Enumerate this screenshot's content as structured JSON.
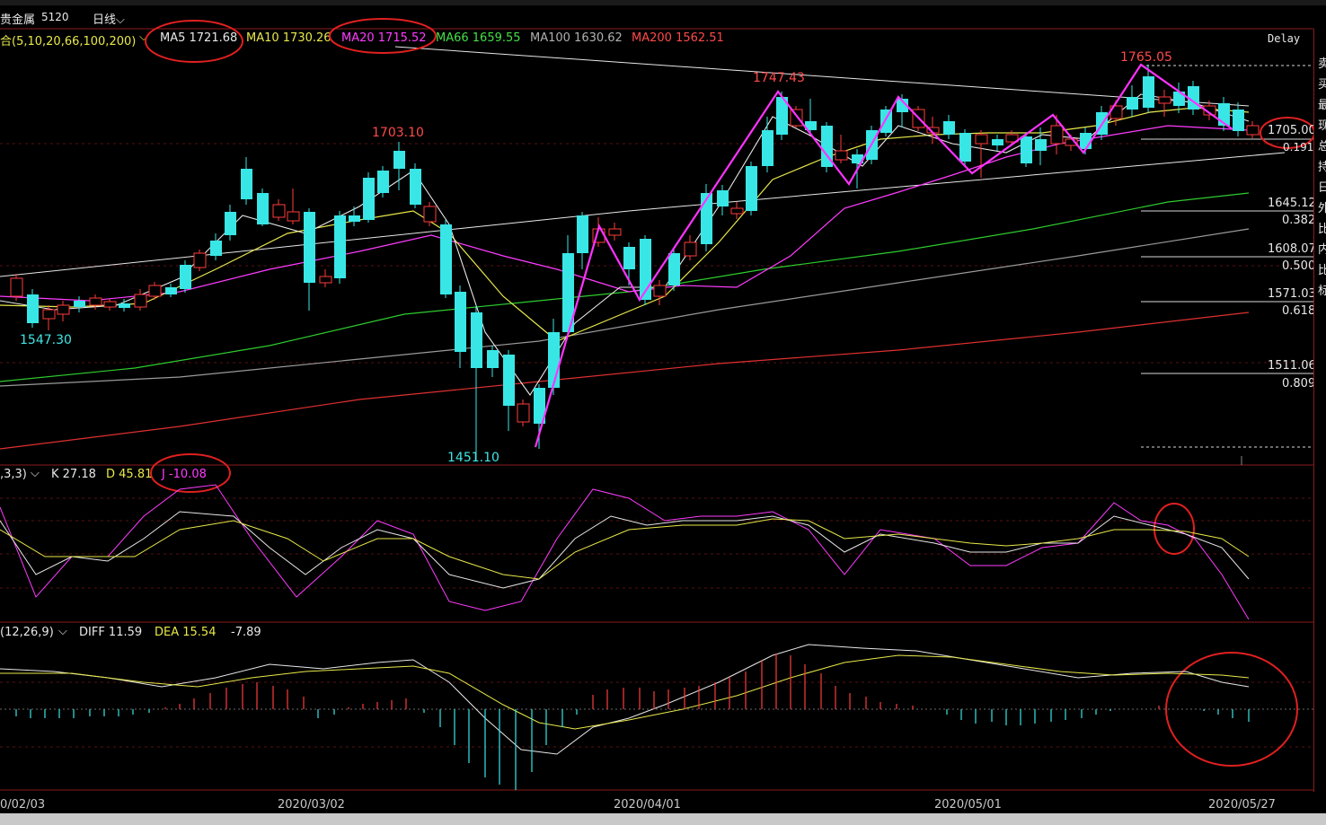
{
  "title": {
    "name": "贵金属",
    "code": "5120",
    "period": "日线"
  },
  "indicator_bar": {
    "combo_label": "合(5,10,20,66,100,200)",
    "ma5": "MA5 1721.68",
    "ma10": "MA10 1730.26",
    "ma20": "MA20 1715.52",
    "ma66": "MA66 1659.55",
    "ma100": "MA100 1630.62",
    "ma200": "MA200 1562.51",
    "delay": "Delay"
  },
  "price_labels": {
    "high1": "1703.10",
    "high2": "1747.43",
    "high3": "1765.05",
    "low1": "1547.30",
    "low2": "1451.10",
    "current": "1705.00",
    "small": "0.191"
  },
  "fib_levels": [
    {
      "value": "1645.12",
      "ratio": "0.382"
    },
    {
      "value": "1608.07",
      "ratio": "0.500"
    },
    {
      "value": "1571.03",
      "ratio": "0.618"
    },
    {
      "value": "1511.06",
      "ratio": "0.809"
    }
  ],
  "kdj": {
    "params": ",3,3)",
    "k": "K 27.18",
    "d": "D 45.81",
    "j": "J -10.08"
  },
  "macd": {
    "params": "(12,26,9)",
    "diff": "DIFF 11.59",
    "dea": "DEA 15.54",
    "macd": "-7.89"
  },
  "dates": [
    "0/02/03",
    "2020/03/02",
    "2020/04/01",
    "2020/05/01",
    "2020/05/27"
  ],
  "side_glyphs": [
    "卖",
    "买",
    "最",
    "现",
    "总",
    "持",
    "日",
    "外",
    "比",
    "内",
    "比",
    "标"
  ],
  "colors": {
    "up": "#ff3c3c",
    "down": "#39e6e6",
    "ma5": "#e8e8e8",
    "ma10": "#e8e84a",
    "ma20": "#ff3cff",
    "ma66": "#2ecc2e",
    "ma100": "#a0a0a0",
    "ma200": "#e03030",
    "annotation": "#ff33ff",
    "circle": "#e02020"
  }
}
